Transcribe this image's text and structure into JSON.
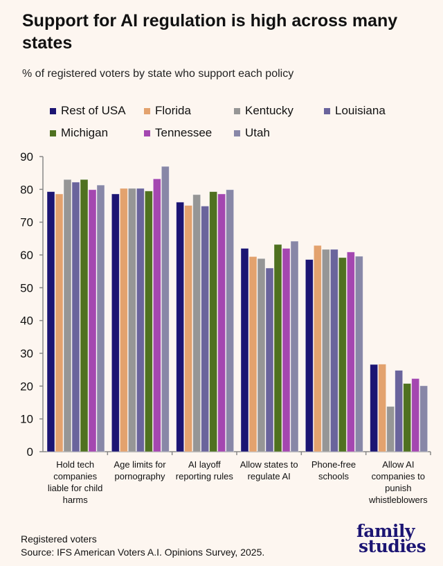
{
  "chart_data": {
    "type": "bar",
    "title": "Support for AI regulation is high across many states",
    "subtitle": "% of registered voters by state who support each policy",
    "categories": [
      "Hold tech companies liable for child harms",
      "Age limits for pornography",
      "AI layoff reporting rules",
      "Allow states to regulate AI",
      "Phone-free schools",
      "Allow AI companies to punish whistleblowers"
    ],
    "series": [
      {
        "name": "Rest of USA",
        "color": "#1c1573",
        "values": [
          79.3,
          78.6,
          76.1,
          62.0,
          58.6,
          26.6
        ]
      },
      {
        "name": "Florida",
        "color": "#e3a26e",
        "values": [
          78.6,
          80.3,
          75.1,
          59.5,
          62.9,
          26.7
        ]
      },
      {
        "name": "Kentucky",
        "color": "#969696",
        "values": [
          83.0,
          80.3,
          78.4,
          58.9,
          61.7,
          13.8
        ]
      },
      {
        "name": "Louisiana",
        "color": "#6a649c",
        "values": [
          82.2,
          80.3,
          74.9,
          56.0,
          61.7,
          24.8
        ]
      },
      {
        "name": "Michigan",
        "color": "#4f7120",
        "values": [
          83.0,
          79.5,
          79.3,
          63.2,
          59.2,
          20.8
        ]
      },
      {
        "name": "Tennessee",
        "color": "#a447b0",
        "values": [
          79.9,
          83.2,
          78.6,
          62.0,
          60.9,
          22.3
        ]
      },
      {
        "name": "Utah",
        "color": "#8887a7",
        "values": [
          81.3,
          87.0,
          79.9,
          64.2,
          59.6,
          20.1
        ]
      }
    ],
    "ylim": [
      0,
      90
    ],
    "yticks": [
      "0",
      "10",
      "20",
      "30",
      "40",
      "50",
      "60",
      "70",
      "80",
      "90"
    ],
    "grid": false,
    "legend": "top"
  },
  "footer": {
    "note": "Registered voters",
    "source": "Source: IFS American Voters A.I. Opinions Survey, 2025."
  },
  "logo": {
    "line1": "family",
    "line2": "studies"
  }
}
